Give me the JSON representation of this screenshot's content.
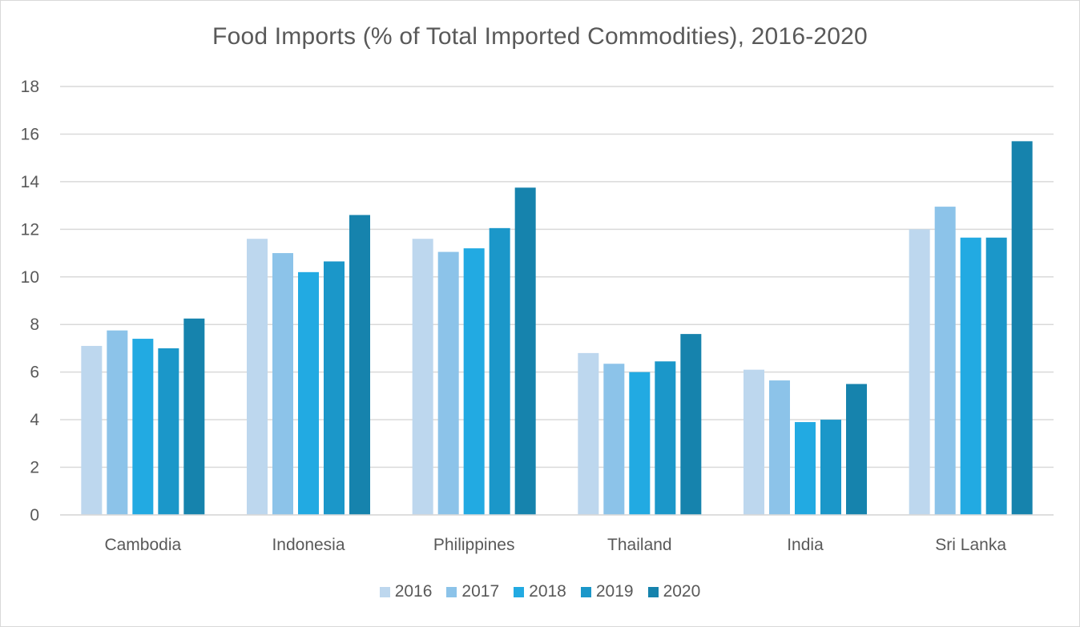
{
  "chart_data": {
    "type": "bar",
    "title": "Food Imports (% of Total Imported Commodities), 2016-2020",
    "xlabel": "",
    "ylabel": "",
    "categories": [
      "Cambodia",
      "Indonesia",
      "Philippines",
      "Thailand",
      "India",
      "Sri Lanka"
    ],
    "ylim": [
      0,
      18
    ],
    "yticks": [
      0,
      2,
      4,
      6,
      8,
      10,
      12,
      14,
      16,
      18
    ],
    "grid": true,
    "legend_position": "bottom",
    "series": [
      {
        "name": "2016",
        "color": "#bdd7ee",
        "values": [
          7.1,
          11.6,
          11.6,
          6.8,
          6.1,
          12.0
        ]
      },
      {
        "name": "2017",
        "color": "#8cc3e9",
        "values": [
          7.75,
          11.0,
          11.05,
          6.35,
          5.65,
          12.95
        ]
      },
      {
        "name": "2018",
        "color": "#22aae2",
        "values": [
          7.4,
          10.2,
          11.2,
          6.0,
          3.9,
          11.65
        ]
      },
      {
        "name": "2019",
        "color": "#1b97c9",
        "values": [
          7.0,
          10.65,
          12.05,
          6.45,
          4.0,
          11.65
        ]
      },
      {
        "name": "2020",
        "color": "#1683ad",
        "values": [
          8.25,
          12.6,
          13.75,
          7.6,
          5.5,
          15.7
        ]
      }
    ]
  }
}
